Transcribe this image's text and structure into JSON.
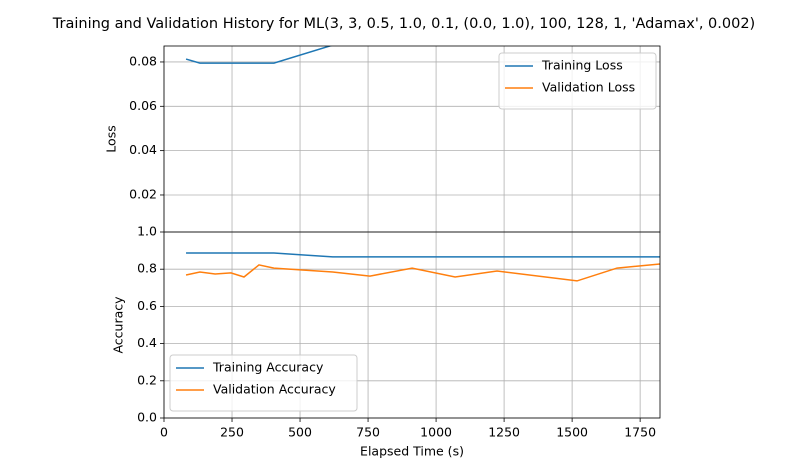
{
  "chart_data": [
    {
      "type": "line",
      "title": "Training and Validation History for ML(3, 3, 0.5, 1.0, 0.1, (0.0, 1.0), 100, 128, 1, 'Adamax', 0.002)",
      "ylabel": "Loss",
      "x": [
        81,
        132,
        188,
        246,
        294,
        349,
        404,
        620,
        757,
        912,
        1070,
        1224,
        1518,
        1665,
        1823
      ],
      "xlim": [
        0,
        1823
      ],
      "ylim": [
        0.0033,
        0.0872
      ],
      "yticks": [
        0.02,
        0.04,
        0.06,
        0.08
      ],
      "grid": true,
      "legend": "upper-right",
      "series": [
        {
          "name": "Training Loss",
          "color": "#1f77b4",
          "values": [
            0.0813,
            0.0795,
            0.0795,
            0.0795,
            0.0795,
            0.0795,
            0.0795,
            0.0876,
            null,
            null,
            null,
            null,
            null,
            null,
            null
          ]
        },
        {
          "name": "Validation Loss",
          "color": "#ff7f0e",
          "values": [
            null,
            null,
            null,
            null,
            null,
            null,
            null,
            null,
            null,
            null,
            null,
            null,
            null,
            null,
            null
          ]
        }
      ]
    },
    {
      "type": "line",
      "ylabel": "Accuracy",
      "xlabel": "Elapsed Time (s)",
      "x": [
        81,
        132,
        188,
        246,
        294,
        349,
        404,
        620,
        757,
        912,
        1070,
        1224,
        1518,
        1665,
        1823
      ],
      "xlim": [
        0,
        1823
      ],
      "xticks": [
        0,
        250,
        500,
        750,
        1000,
        1250,
        1500,
        1750
      ],
      "ylim": [
        0,
        1
      ],
      "yticks": [
        {
          "value": 0,
          "label": "0.0"
        },
        0.2,
        0.4,
        0.6,
        0.8,
        {
          "value": 1,
          "label": "1.0"
        }
      ],
      "grid": true,
      "legend": "lower-left",
      "series": [
        {
          "name": "Training Accuracy",
          "color": "#1f77b4",
          "values": [
            0.887,
            0.887,
            0.887,
            0.887,
            0.887,
            0.887,
            0.887,
            0.866,
            0.866,
            0.866,
            0.866,
            0.866,
            0.866,
            0.866,
            0.866
          ]
        },
        {
          "name": "Validation Accuracy",
          "color": "#ff7f0e",
          "values": [
            0.769,
            0.785,
            0.774,
            0.78,
            0.758,
            0.823,
            0.806,
            0.785,
            0.763,
            0.806,
            0.758,
            0.79,
            0.737,
            0.806,
            0.828
          ]
        }
      ]
    }
  ]
}
